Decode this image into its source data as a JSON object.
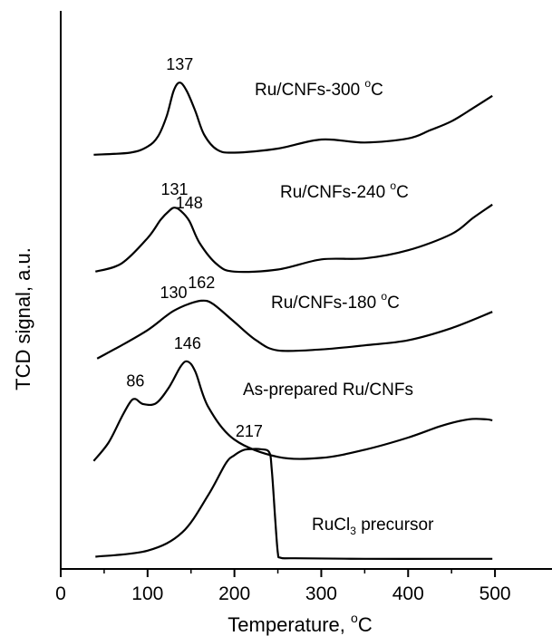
{
  "chart_data": {
    "type": "line",
    "title": "",
    "xlabel": "Temperature, °C",
    "ylabel": "TCD signal, a.u.",
    "xlim": [
      0,
      550
    ],
    "xticks": [
      0,
      100,
      200,
      300,
      400,
      500
    ],
    "yticks_shown": false,
    "grid": false,
    "legend": "none",
    "line_color": "#000000",
    "series": [
      {
        "name": "Ru/CNFs-300 °C",
        "x": [
          38,
          80,
          100,
          112,
          122,
          130,
          137,
          145,
          155,
          165,
          180,
          200,
          250,
          300,
          350,
          400,
          425,
          450,
          475,
          497
        ],
        "y": [
          0.2,
          0.4,
          1.0,
          2.0,
          4.0,
          6.5,
          7.3,
          6.5,
          4.5,
          2.2,
          0.7,
          0.4,
          0.8,
          1.7,
          1.4,
          1.8,
          2.6,
          3.5,
          4.8,
          6.0
        ],
        "peak_labels": [
          {
            "x": 137,
            "text": "137"
          }
        ]
      },
      {
        "name": "Ru/CNFs-240 °C",
        "x": [
          40,
          70,
          100,
          115,
          125,
          131,
          138,
          148,
          160,
          180,
          200,
          250,
          300,
          350,
          400,
          450,
          475,
          497
        ],
        "y": [
          0.2,
          1.0,
          3.5,
          5.3,
          6.2,
          6.5,
          6.2,
          5.2,
          3.0,
          0.9,
          0.2,
          0.4,
          1.4,
          1.5,
          2.3,
          3.9,
          5.5,
          6.8
        ],
        "peak_labels": [
          {
            "x": 131,
            "text": "131"
          },
          {
            "x": 148,
            "text": "148"
          }
        ]
      },
      {
        "name": "Ru/CNFs-180 °C",
        "x": [
          42,
          70,
          100,
          120,
          130,
          145,
          162,
          175,
          200,
          225,
          250,
          300,
          350,
          400,
          450,
          497
        ],
        "y": [
          0.2,
          1.5,
          3.0,
          4.3,
          4.9,
          5.5,
          5.9,
          5.6,
          3.8,
          2.0,
          1.0,
          1.1,
          1.5,
          2.0,
          3.2,
          4.8
        ],
        "peak_labels": [
          {
            "x": 130,
            "text": "130"
          },
          {
            "x": 162,
            "text": "162"
          }
        ]
      },
      {
        "name": "As-prepared Ru/CNFs",
        "x": [
          38,
          55,
          70,
          80,
          86,
          95,
          110,
          125,
          138,
          146,
          155,
          170,
          200,
          250,
          300,
          350,
          400,
          440,
          470,
          490,
          497
        ],
        "y": [
          0.2,
          2.0,
          4.5,
          6.0,
          6.3,
          5.8,
          5.9,
          7.5,
          9.5,
          10.0,
          9.0,
          5.5,
          2.3,
          0.6,
          0.5,
          1.3,
          2.5,
          3.7,
          4.3,
          4.3,
          4.2
        ],
        "peak_labels": [
          {
            "x": 86,
            "text": "86"
          },
          {
            "x": 146,
            "text": "146"
          }
        ]
      },
      {
        "name": "RuCl3 precursor",
        "x": [
          40,
          100,
          140,
          170,
          190,
          200,
          210,
          217,
          230,
          240,
          243,
          247,
          250,
          253,
          270,
          350,
          450,
          497
        ],
        "y": [
          0.4,
          1.0,
          2.8,
          6.5,
          9.6,
          10.4,
          10.9,
          11.0,
          11.0,
          10.7,
          9.0,
          4.0,
          0.8,
          0.3,
          0.25,
          0.2,
          0.2,
          0.2
        ],
        "peak_labels": [
          {
            "x": 217,
            "text": "217"
          }
        ]
      }
    ]
  },
  "labels": {
    "series_1_pre": "Ru/CNFs-300 ",
    "series_1_unit": "C",
    "series_2_pre": "Ru/CNFs-240 ",
    "series_2_unit": "C",
    "series_3_pre": "Ru/CNFs-180 ",
    "series_3_unit": "C",
    "series_4": "As-prepared Ru/CNFs",
    "series_5_pre": "RuCl",
    "series_5_sub": "3",
    "series_5_post": " precursor",
    "degree": "o",
    "xlabel_pre": "Temperature, ",
    "xlabel_unit": "C",
    "ylabel": "TCD signal, a.u."
  }
}
